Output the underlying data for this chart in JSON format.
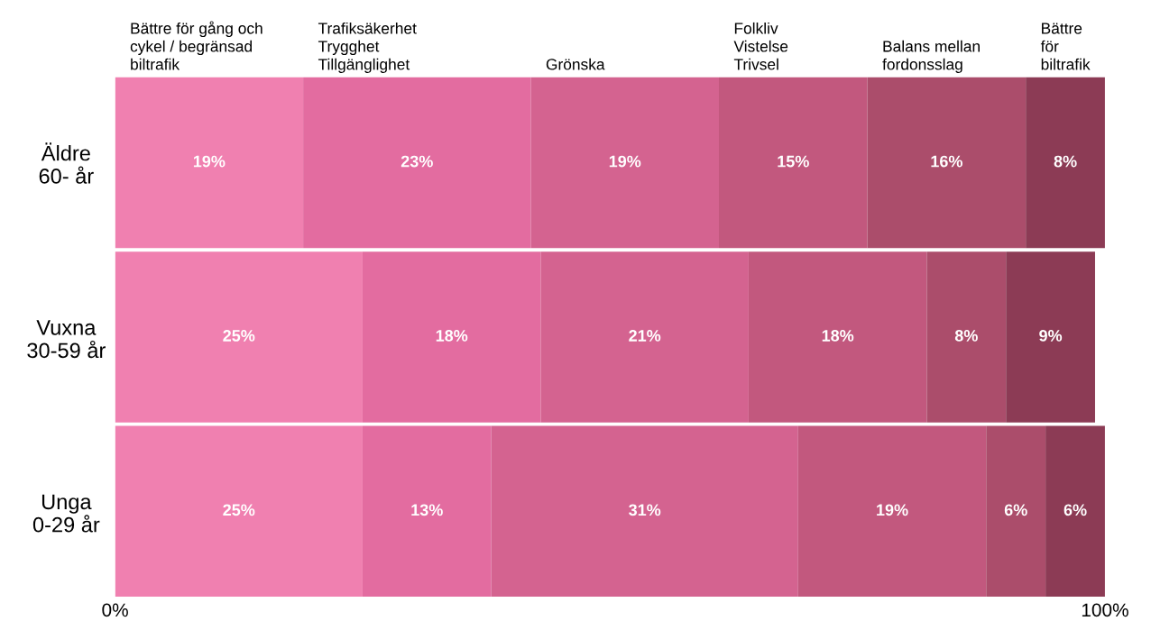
{
  "chart_data": {
    "type": "bar",
    "orientation": "horizontal",
    "stacked": true,
    "legend": false,
    "grid": false,
    "categories": [
      "Äldre\n60- år",
      "Vuxna\n30-59 år",
      "Unga\n0-29 år"
    ],
    "xlim": [
      0,
      100
    ],
    "xticks": [
      {
        "value": 0,
        "label": "0%"
      },
      {
        "value": 100,
        "label": "100%"
      }
    ],
    "series": [
      {
        "name": "Bättre för gång och\ncykel / begränsad\nbiltrafik",
        "color": "#f080b0",
        "values": [
          19,
          25,
          25
        ],
        "value_labels": [
          "19%",
          "25%",
          "25%"
        ]
      },
      {
        "name": "Trafiksäkerhet\nTrygghet\nTillgänglighet",
        "color": "#e36ca0",
        "values": [
          23,
          18,
          13
        ],
        "value_labels": [
          "23%",
          "18%",
          "13%"
        ]
      },
      {
        "name": "Grönska",
        "color": "#d46390",
        "values": [
          19,
          21,
          31
        ],
        "value_labels": [
          "19%",
          "21%",
          "31%"
        ]
      },
      {
        "name": "Folkliv\nVistelse\nTrivsel",
        "color": "#c2587e",
        "values": [
          15,
          18,
          19
        ],
        "value_labels": [
          "15%",
          "18%",
          "19%"
        ]
      },
      {
        "name": "Balans mellan\nfordonsslag",
        "color": "#ab4d6b",
        "values": [
          16,
          8,
          6
        ],
        "value_labels": [
          "16%",
          "8%",
          "6%"
        ]
      },
      {
        "name": "Bättre\nför\nbiltrafik",
        "color": "#8c3b55",
        "values": [
          8,
          9,
          6
        ],
        "value_labels": [
          "8%",
          "9%",
          "6%"
        ]
      }
    ]
  }
}
